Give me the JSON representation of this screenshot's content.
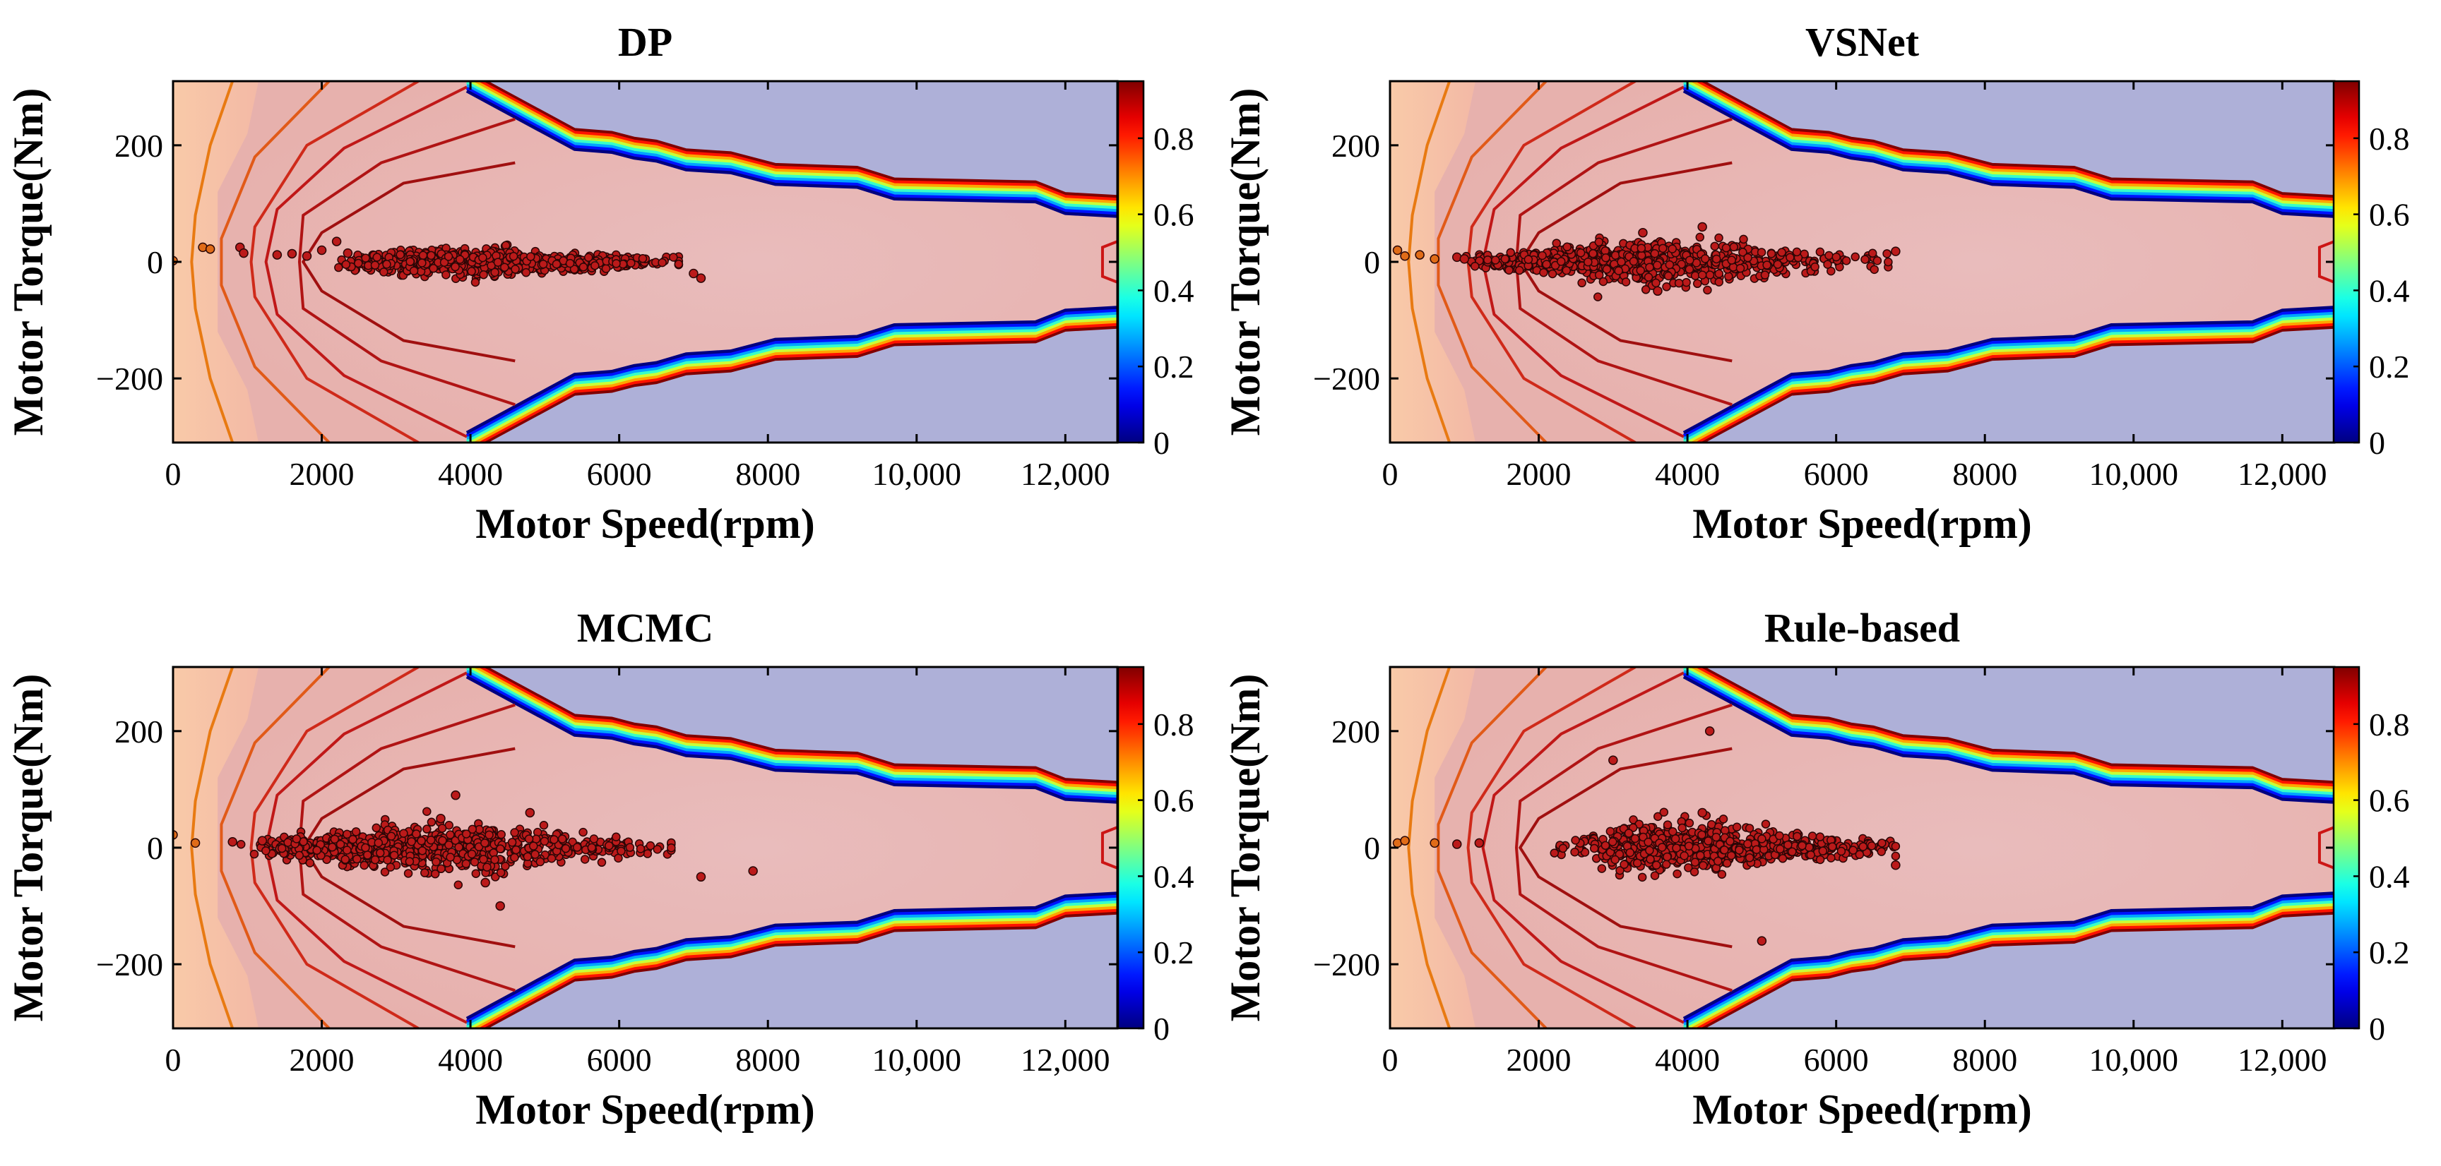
{
  "figure": {
    "colormap": "jet",
    "colors": {
      "efficiency_low_region": "#aeb0d8",
      "efficiency_mid_region": "#e7b3b0",
      "efficiency_high_region": "#e8b7b5",
      "low_speed_region": "#f7c5a6",
      "contour_line": "#cc1515",
      "operating_point_fill": "#bb1a1a",
      "operating_point_edge": "#2a0606"
    }
  },
  "chart_data": [
    {
      "type": "scatter",
      "title": "DP",
      "xlabel": "Motor Speed(rpm)",
      "ylabel": "Motor Torque(Nm)",
      "xlim": [
        0,
        12700
      ],
      "ylim": [
        -310,
        310
      ],
      "xticks": [
        0,
        2000,
        4000,
        6000,
        8000,
        10000,
        12000
      ],
      "xtick_labels": [
        "0",
        "2000",
        "4000",
        "6000",
        "8000",
        "10,000",
        "12,000"
      ],
      "yticks": [
        -200,
        0,
        200
      ],
      "ytick_labels": [
        "−200",
        "0",
        "200"
      ],
      "colorbar": {
        "range": [
          0,
          0.95
        ],
        "ticks": [
          0,
          0.2,
          0.4,
          0.6,
          0.8
        ],
        "tick_labels": [
          "0",
          "0.2",
          "0.4",
          "0.6",
          "0.8"
        ]
      },
      "background": "motor efficiency map (contour, filled)",
      "points": {
        "speed_range": [
          2500,
          6800
        ],
        "torque_spread": 12,
        "count": 700,
        "outliers": [
          [
            0,
            2
          ],
          [
            400,
            25
          ],
          [
            500,
            22
          ],
          [
            900,
            25
          ],
          [
            950,
            15
          ],
          [
            1400,
            12
          ],
          [
            1600,
            14
          ],
          [
            1800,
            10
          ],
          [
            2000,
            20
          ],
          [
            2200,
            35
          ],
          [
            2350,
            15
          ],
          [
            7000,
            -20
          ],
          [
            7100,
            -28
          ]
        ]
      }
    },
    {
      "type": "scatter",
      "title": "VSNet",
      "xlabel": "Motor Speed(rpm)",
      "ylabel": "Motor Torque(Nm)",
      "xlim": [
        0,
        12700
      ],
      "ylim": [
        -310,
        310
      ],
      "xticks": [
        0,
        2000,
        4000,
        6000,
        8000,
        10000,
        12000
      ],
      "xtick_labels": [
        "0",
        "2000",
        "4000",
        "6000",
        "8000",
        "10,000",
        "12,000"
      ],
      "yticks": [
        -200,
        0,
        200
      ],
      "ytick_labels": [
        "−200",
        "0",
        "200"
      ],
      "colorbar": {
        "range": [
          0,
          0.95
        ],
        "ticks": [
          0,
          0.2,
          0.4,
          0.6,
          0.8
        ],
        "tick_labels": [
          "0",
          "0.2",
          "0.4",
          "0.6",
          "0.8"
        ]
      },
      "background": "motor efficiency map (contour, filled)",
      "points": {
        "speed_range": [
          1200,
          6700
        ],
        "torque_spread": 18,
        "count": 750,
        "outliers": [
          [
            100,
            20
          ],
          [
            200,
            10
          ],
          [
            400,
            12
          ],
          [
            600,
            5
          ],
          [
            900,
            8
          ],
          [
            1000,
            5
          ],
          [
            3400,
            50
          ],
          [
            3600,
            -50
          ],
          [
            4200,
            60
          ],
          [
            6800,
            18
          ]
        ]
      }
    },
    {
      "type": "scatter",
      "title": "MCMC",
      "xlabel": "Motor Speed(rpm)",
      "ylabel": "Motor Torque(Nm)",
      "xlim": [
        0,
        12700
      ],
      "ylim": [
        -310,
        310
      ],
      "xticks": [
        0,
        2000,
        4000,
        6000,
        8000,
        10000,
        12000
      ],
      "xtick_labels": [
        "0",
        "2000",
        "4000",
        "6000",
        "8000",
        "10,000",
        "12,000"
      ],
      "yticks": [
        -200,
        0,
        200
      ],
      "ytick_labels": [
        "−200",
        "0",
        "200"
      ],
      "colorbar": {
        "range": [
          0,
          0.95
        ],
        "ticks": [
          0,
          0.2,
          0.4,
          0.6,
          0.8
        ],
        "tick_labels": [
          "0",
          "0.2",
          "0.4",
          "0.6",
          "0.8"
        ]
      },
      "background": "motor efficiency map (contour, filled)",
      "points": {
        "speed_range": [
          1200,
          6700
        ],
        "torque_spread": 22,
        "count": 700,
        "outliers": [
          [
            0,
            22
          ],
          [
            300,
            8
          ],
          [
            800,
            10
          ],
          [
            1200,
            12
          ],
          [
            3800,
            90
          ],
          [
            3600,
            50
          ],
          [
            4400,
            -100
          ],
          [
            4200,
            -60
          ],
          [
            4800,
            60
          ],
          [
            7100,
            -50
          ],
          [
            7800,
            -40
          ]
        ]
      }
    },
    {
      "type": "scatter",
      "title": "Rule-based",
      "xlabel": "Motor Speed(rpm)",
      "ylabel": "Motor Torque(Nm)",
      "xlim": [
        0,
        12700
      ],
      "ylim": [
        -310,
        310
      ],
      "xticks": [
        0,
        2000,
        4000,
        6000,
        8000,
        10000,
        12000
      ],
      "xtick_labels": [
        "0",
        "2000",
        "4000",
        "6000",
        "8000",
        "10,000",
        "12,000"
      ],
      "yticks": [
        -200,
        0,
        200
      ],
      "ytick_labels": [
        "−200",
        "0",
        "200"
      ],
      "colorbar": {
        "range": [
          0,
          0.95
        ],
        "ticks": [
          0,
          0.2,
          0.4,
          0.6,
          0.8
        ],
        "tick_labels": [
          "0",
          "0.2",
          "0.4",
          "0.6",
          "0.8"
        ]
      },
      "background": "motor efficiency map (contour, filled)",
      "points": {
        "speed_range": [
          2500,
          6800
        ],
        "torque_spread": 20,
        "count": 700,
        "outliers": [
          [
            100,
            8
          ],
          [
            200,
            12
          ],
          [
            600,
            8
          ],
          [
            900,
            6
          ],
          [
            1200,
            8
          ],
          [
            3000,
            150
          ],
          [
            4300,
            200
          ],
          [
            4200,
            60
          ],
          [
            5000,
            -160
          ],
          [
            6800,
            -30
          ]
        ]
      }
    }
  ]
}
